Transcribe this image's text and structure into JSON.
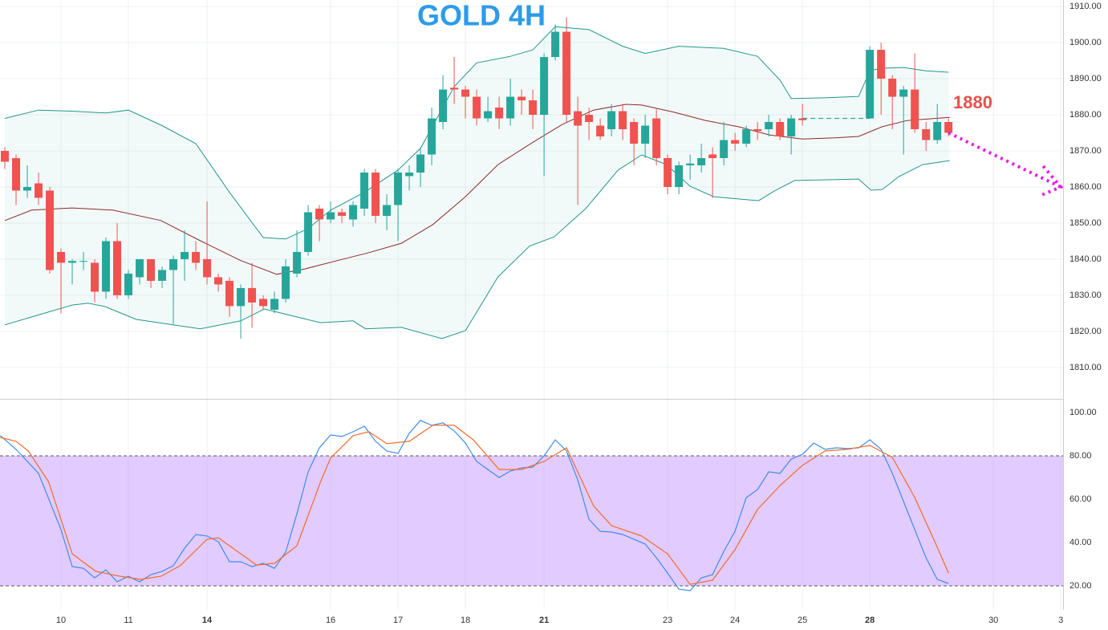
{
  "chart_data": [
    {
      "type": "candlestick",
      "title": "GOLD 4H",
      "annotation": "1880",
      "x": [
        0,
        1,
        2,
        3,
        4,
        5,
        6,
        7,
        8,
        9,
        10,
        11,
        12,
        13,
        14,
        15,
        16,
        17,
        18,
        19,
        20,
        21,
        22,
        23,
        24,
        25,
        26,
        27,
        28,
        29,
        30,
        31,
        32,
        33,
        34,
        35,
        36,
        37,
        38,
        39,
        40,
        41,
        42,
        43,
        44,
        45,
        46,
        47,
        48,
        49,
        50,
        51,
        52,
        53,
        54,
        55,
        56,
        57,
        58,
        59,
        60,
        61,
        62,
        63,
        64,
        65,
        66,
        67,
        68,
        69,
        70,
        71,
        77,
        78,
        79,
        80,
        81,
        82,
        83,
        84
      ],
      "open": [
        1870,
        1868,
        1859,
        1861,
        1859,
        1842,
        1839,
        1839.5,
        1839,
        1831,
        1845,
        1830,
        1835,
        1840,
        1834,
        1837,
        1840,
        1842,
        1840,
        1835,
        1834,
        1827,
        1832,
        1829,
        1826,
        1829,
        1836,
        1842,
        1854,
        1851,
        1853,
        1851,
        1854,
        1864,
        1852,
        1855,
        1863,
        1864,
        1869,
        1878,
        1887.5,
        1887,
        1885,
        1879,
        1882,
        1879,
        1885,
        1884,
        1880,
        1896,
        1903,
        1881,
        1880,
        1877,
        1876,
        1881,
        1878,
        1872,
        1879,
        1868,
        1860,
        1866,
        1866,
        1869,
        1868,
        1873,
        1872,
        1876,
        1876,
        1878,
        1874,
        1879,
        1879,
        1898,
        1890,
        1885,
        1887,
        1876,
        1873,
        1878
      ],
      "high": [
        1871,
        1869,
        1866,
        1864,
        1860,
        1843,
        1840,
        1842,
        1840,
        1846,
        1850,
        1837,
        1840,
        1840,
        1838,
        1841,
        1848,
        1845,
        1856,
        1836,
        1835,
        1833,
        1839,
        1830,
        1831,
        1840,
        1848,
        1855,
        1855,
        1856,
        1854,
        1856,
        1865,
        1865,
        1858,
        1865,
        1866,
        1871,
        1882,
        1891,
        1896,
        1888,
        1887,
        1885,
        1885,
        1890,
        1887,
        1887,
        1897,
        1905,
        1907,
        1885,
        1882,
        1879,
        1883,
        1883,
        1879,
        1880,
        1882,
        1869,
        1867,
        1869,
        1872,
        1871,
        1878,
        1875,
        1877,
        1878,
        1880,
        1879,
        1880,
        1883,
        1899,
        1900,
        1891,
        1888,
        1897,
        1878,
        1883,
        1879
      ],
      "low": [
        1865,
        1855,
        1857,
        1855,
        1836,
        1825,
        1833,
        1837,
        1828,
        1829,
        1829,
        1829,
        1833,
        1832,
        1832,
        1822,
        1834,
        1837,
        1833,
        1831,
        1824,
        1818,
        1821,
        1826,
        1825,
        1828,
        1835,
        1841,
        1845,
        1850,
        1850,
        1849,
        1852,
        1850,
        1848,
        1845,
        1859,
        1860,
        1866,
        1876,
        1883,
        1879,
        1877,
        1878,
        1876,
        1877,
        1880,
        1876,
        1863,
        1895,
        1878,
        1855,
        1873,
        1873,
        1874,
        1873,
        1866,
        1868,
        1866,
        1858,
        1858,
        1862,
        1864,
        1857,
        1866,
        1870,
        1871,
        1873,
        1874,
        1873,
        1869,
        1877,
        1879,
        1880,
        1876,
        1869,
        1875,
        1870,
        1872,
        1874
      ],
      "close": [
        1867,
        1859,
        1860,
        1857,
        1837,
        1839,
        1839.5,
        1839.5,
        1831,
        1845,
        1830,
        1836,
        1840,
        1834,
        1837,
        1840,
        1842,
        1839,
        1835,
        1833,
        1827,
        1832,
        1828,
        1827,
        1829,
        1838,
        1842,
        1853,
        1851,
        1853,
        1852,
        1855,
        1864,
        1852,
        1855,
        1864,
        1864,
        1869,
        1879,
        1887,
        1887,
        1885,
        1879,
        1881,
        1879,
        1885,
        1884,
        1880,
        1896,
        1903,
        1880,
        1877,
        1878,
        1874,
        1881,
        1876,
        1872,
        1877,
        1868,
        1860,
        1866,
        1866.5,
        1868,
        1868,
        1873,
        1872,
        1876,
        1875.5,
        1878,
        1874,
        1879,
        1878.5,
        1898,
        1890,
        1885,
        1887,
        1876,
        1873,
        1878,
        1875
      ],
      "up_color": "#26a69a",
      "down_color": "#ef5350",
      "bands": [
        {
          "color": "#22978a",
          "x": [
            0,
            3,
            6,
            9,
            11,
            14,
            17,
            20,
            23,
            25,
            27,
            29,
            32,
            35,
            37,
            40,
            42,
            45,
            47,
            49,
            52,
            55,
            57,
            60,
            64,
            67,
            69,
            70,
            73,
            76,
            77,
            78,
            80,
            82,
            84
          ],
          "values": [
            1879,
            1881.3,
            1881,
            1880.5,
            1881.3,
            1877,
            1872,
            1858.5,
            1846,
            1845.6,
            1848.5,
            1853.6,
            1858.5,
            1864.7,
            1870.7,
            1887.8,
            1894.4,
            1896.2,
            1898,
            1904.4,
            1903.6,
            1899,
            1897,
            1899,
            1898.4,
            1896.2,
            1889.6,
            1884.5,
            1884.7,
            1885.1,
            1892.2,
            1892.9,
            1893.1,
            1892.2,
            1891.8
          ]
        },
        {
          "color": "#8b2a2a",
          "x": [
            0,
            2.4,
            6,
            9.6,
            13.9,
            17.4,
            21,
            24.2,
            26.7,
            29.6,
            32.4,
            35.3,
            38.1,
            41,
            43.9,
            46.7,
            49.6,
            52.4,
            55.3,
            56.7,
            59.6,
            62.4,
            65.3,
            68.1,
            71,
            73.9,
            76,
            78.1,
            80.3,
            84.1
          ],
          "values": [
            1850.7,
            1853.6,
            1854.2,
            1853.6,
            1850.7,
            1845.1,
            1839.6,
            1835.8,
            1837.3,
            1839.6,
            1841.8,
            1844.4,
            1849.6,
            1857.3,
            1866.2,
            1871.8,
            1877.3,
            1881.3,
            1882.9,
            1882.7,
            1880.7,
            1878.4,
            1876.7,
            1874.4,
            1873.3,
            1873.6,
            1874,
            1876.7,
            1878.4,
            1879.3
          ]
        },
        {
          "color": "#22978a",
          "x": [
            0,
            2.4,
            6,
            7.4,
            8.9,
            11.7,
            17.4,
            21,
            23.1,
            28.1,
            31,
            32.1,
            35.3,
            38.9,
            41,
            43.9,
            46.7,
            48.9,
            51.7,
            54.6,
            56.7,
            58.9,
            61,
            63.1,
            67.1,
            68.5,
            70.3,
            76,
            77.1,
            78.1,
            79.6,
            81.7,
            84.1
          ],
          "values": [
            1821.8,
            1824,
            1827.3,
            1827.8,
            1826.9,
            1823.3,
            1820.7,
            1822.9,
            1826.2,
            1822.4,
            1822.9,
            1820.7,
            1821.1,
            1818,
            1820.2,
            1835.1,
            1843.6,
            1846.2,
            1854,
            1864.7,
            1868.9,
            1866.2,
            1860.2,
            1857.3,
            1856.2,
            1858.9,
            1861.8,
            1862.2,
            1859.1,
            1859.3,
            1862.9,
            1866.2,
            1867.3
          ]
        }
      ],
      "band_fill": "rgba(38,166,154,0.06)",
      "gap_line": {
        "x": [
          71,
          77
        ],
        "value": 1879,
        "color": "#26a69a"
      },
      "projection": {
        "x": [
          84,
          94
        ],
        "values": [
          1875,
          1860
        ],
        "color": "#e81ee0"
      },
      "xlim": [
        -0.43,
        94.2
      ],
      "ylim": [
        1801.3,
        1911.8
      ],
      "yticks": [
        {
          "value": 1810,
          "label": "1810.00"
        },
        {
          "value": 1820,
          "label": "1820.00"
        },
        {
          "value": 1830,
          "label": "1830.00"
        },
        {
          "value": 1840,
          "label": "1840.00"
        },
        {
          "value": 1850,
          "label": "1850.00"
        },
        {
          "value": 1860,
          "label": "1860.00"
        },
        {
          "value": 1870,
          "label": "1870.00"
        },
        {
          "value": 1880,
          "label": "1880.00"
        },
        {
          "value": 1890,
          "label": "1890.00"
        },
        {
          "value": 1900,
          "label": "1900.00"
        },
        {
          "value": 1910,
          "label": "1910.00"
        }
      ],
      "grid": true
    },
    {
      "type": "line",
      "series": [
        {
          "color": "#3d8ee8",
          "x": [
            -0.4,
            1,
            3,
            5,
            6,
            7,
            8,
            9,
            10,
            11,
            12,
            13,
            14,
            15,
            16,
            17,
            18,
            19,
            20,
            21,
            22,
            23,
            24,
            25,
            26,
            27,
            28,
            29,
            30,
            31,
            32,
            33,
            34,
            35,
            36,
            37,
            38,
            39,
            40,
            41,
            42,
            43,
            44,
            45,
            46,
            47,
            48,
            49,
            50,
            51,
            52,
            53,
            54,
            55,
            56,
            57,
            58,
            59,
            60,
            61,
            62,
            63,
            64,
            65,
            66,
            67,
            68,
            69,
            70,
            71,
            72,
            73,
            74,
            75,
            76,
            77,
            78,
            79,
            80,
            81,
            82,
            83,
            84
          ],
          "values": [
            89.3,
            83,
            71.9,
            46,
            28.9,
            28.1,
            23.7,
            27.4,
            21.9,
            24.4,
            21.9,
            25.2,
            26.7,
            29.3,
            37.4,
            43.7,
            43,
            40.4,
            31.1,
            31.1,
            28.9,
            30.4,
            28.1,
            35.6,
            53.3,
            72.6,
            83.7,
            89.6,
            88.9,
            91.1,
            93.7,
            86.7,
            82.2,
            81.1,
            90.4,
            96.3,
            94.1,
            95.2,
            91.5,
            85.9,
            77.4,
            73.7,
            70,
            73,
            74.4,
            74.8,
            80,
            87.4,
            82.2,
            68.9,
            50.7,
            45.2,
            44.8,
            43.7,
            41.5,
            39.3,
            33,
            25.9,
            18.5,
            17.8,
            23.7,
            25.2,
            35.9,
            45.2,
            60.7,
            64.4,
            72.6,
            71.9,
            78.5,
            80.7,
            85.9,
            83,
            83.7,
            83.3,
            83.7,
            87.4,
            83,
            71.9,
            58.9,
            45.9,
            33,
            23,
            21.1
          ]
        },
        {
          "color": "#f26b2c",
          "x": [
            -0.4,
            1,
            2.1,
            3.9,
            6,
            8.1,
            10.3,
            12.1,
            13.9,
            15.6,
            18,
            19,
            21,
            22.4,
            24,
            26,
            28.1,
            29,
            31,
            32.4,
            34,
            36,
            38.1,
            40,
            41.7,
            44,
            46,
            48,
            50,
            52.4,
            54,
            56.7,
            59,
            61,
            63,
            65,
            67,
            69,
            71,
            73,
            75,
            77,
            79,
            81,
            83,
            84
          ],
          "values": [
            88.5,
            86.7,
            82.2,
            68,
            34.8,
            26.7,
            24.4,
            23,
            24.4,
            29.3,
            41.5,
            42.2,
            34.8,
            29.6,
            30.4,
            38.5,
            68,
            79,
            89.3,
            91.1,
            85.6,
            86.7,
            94.1,
            94.1,
            87.4,
            73.7,
            73.7,
            77.4,
            83.7,
            57,
            47.8,
            43,
            34.8,
            20.7,
            22.6,
            36.7,
            55.2,
            66.3,
            75.6,
            82.2,
            83,
            84.8,
            79.3,
            60.7,
            37.8,
            25.9
          ]
        }
      ],
      "band": [
        20,
        80
      ],
      "band_color": "rgba(190,140,255,0.45)",
      "xlim": [
        -0.43,
        94.2
      ],
      "ylim": [
        8.9,
        105.9
      ],
      "yticks": [
        {
          "value": 20,
          "label": "20.00"
        },
        {
          "value": 40,
          "label": "40.00"
        },
        {
          "value": 60,
          "label": "60.00"
        },
        {
          "value": 80,
          "label": "80.00"
        },
        {
          "value": 100,
          "label": "100.00"
        }
      ],
      "xticks": [
        {
          "value": 5,
          "label": "10"
        },
        {
          "value": 11,
          "label": "11"
        },
        {
          "value": 18,
          "label": "14",
          "bold": true
        },
        {
          "value": 29,
          "label": "16"
        },
        {
          "value": 35,
          "label": "17"
        },
        {
          "value": 41,
          "label": "18"
        },
        {
          "value": 48,
          "label": "21",
          "bold": true
        },
        {
          "value": 59,
          "label": "23"
        },
        {
          "value": 65,
          "label": "24"
        },
        {
          "value": 71,
          "label": "25"
        },
        {
          "value": 77,
          "label": "28",
          "bold": true
        },
        {
          "value": 88,
          "label": "30"
        },
        {
          "value": 94,
          "label": "3"
        }
      ]
    }
  ]
}
